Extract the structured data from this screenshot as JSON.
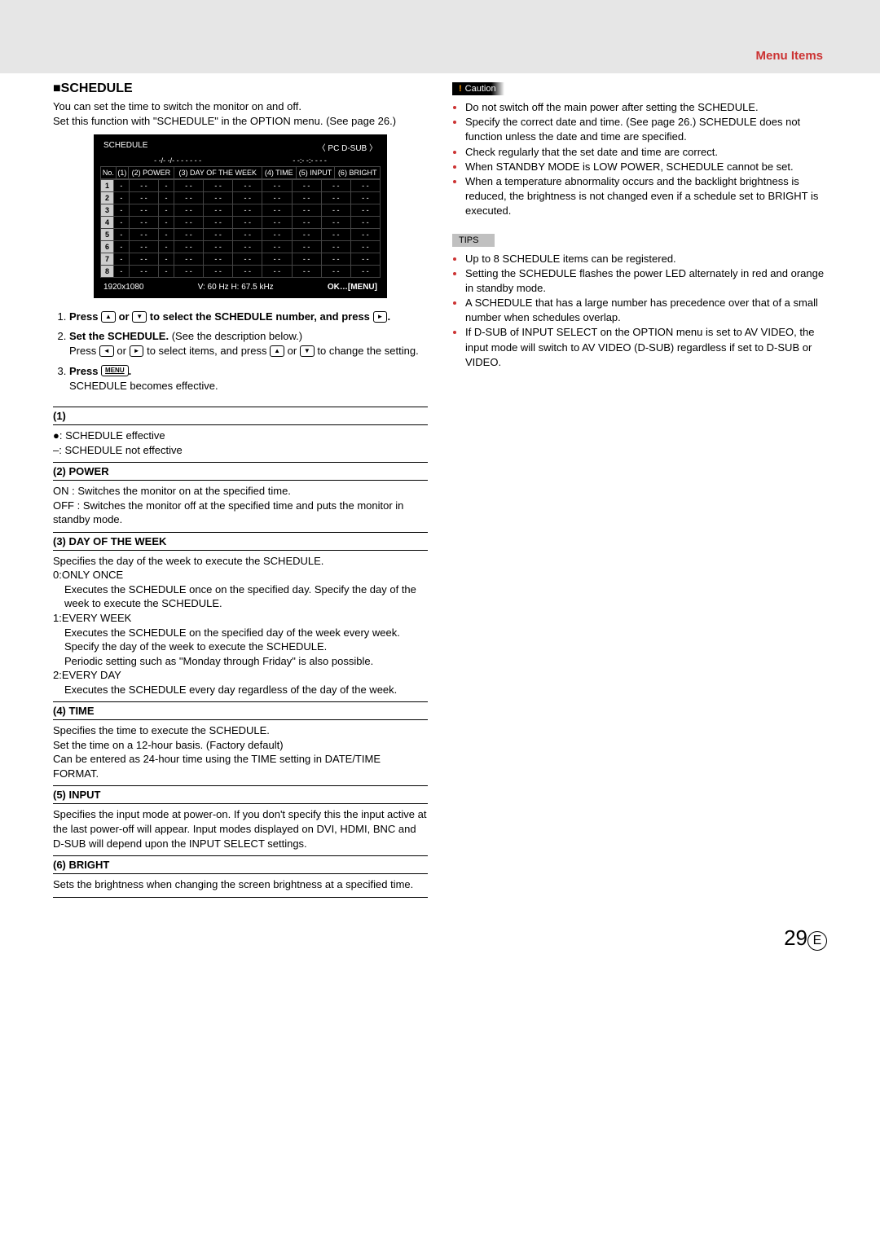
{
  "header": {
    "title": "Menu Items"
  },
  "section": {
    "title": "■SCHEDULE",
    "intro": "You can set the time to switch the monitor on and off.\nSet this function with \"SCHEDULE\" in the OPTION menu. (See page 26.)"
  },
  "osd": {
    "title": "SCHEDULE",
    "corner": "〈 PC D-SUB 〉",
    "date_line1": "- -/- -/- - - -   - - -",
    "date_line2": "- -:- -:- -  - -",
    "cols": [
      "No.",
      "(1)",
      "(2) POWER",
      "(3) DAY OF THE WEEK",
      "",
      "(4) TIME",
      "(5) INPUT",
      "(6) BRIGHT"
    ],
    "rows": [
      [
        "1",
        "-",
        "- -",
        "-",
        "- -",
        "- -",
        "- -",
        "- -",
        "- -",
        "- -",
        "- -"
      ],
      [
        "2",
        "-",
        "- -",
        "-",
        "- -",
        "- -",
        "- -",
        "- -",
        "- -",
        "- -",
        "- -"
      ],
      [
        "3",
        "-",
        "- -",
        "-",
        "- -",
        "- -",
        "- -",
        "- -",
        "- -",
        "- -",
        "- -"
      ],
      [
        "4",
        "-",
        "- -",
        "-",
        "- -",
        "- -",
        "- -",
        "- -",
        "- -",
        "- -",
        "- -"
      ],
      [
        "5",
        "-",
        "- -",
        "-",
        "- -",
        "- -",
        "- -",
        "- -",
        "- -",
        "- -",
        "- -"
      ],
      [
        "6",
        "-",
        "- -",
        "-",
        "- -",
        "- -",
        "- -",
        "- -",
        "- -",
        "- -",
        "- -"
      ],
      [
        "7",
        "-",
        "- -",
        "-",
        "- -",
        "- -",
        "- -",
        "- -",
        "- -",
        "- -",
        "- -"
      ],
      [
        "8",
        "-",
        "- -",
        "-",
        "- -",
        "- -",
        "- -",
        "- -",
        "- -",
        "- -",
        "- -"
      ]
    ],
    "footer_left": "1920x1080",
    "footer_mid": "V: 60 Hz   H: 67.5 kHz",
    "footer_right": "OK…[MENU]"
  },
  "steps": {
    "s1a": "Press ",
    "s1b": " or ",
    "s1c": " to select the SCHEDULE number, and press ",
    "s1d": ".",
    "btn_up": "▲",
    "btn_down": "▼",
    "btn_left": "◄",
    "btn_right": "►",
    "s2a": "Set the SCHEDULE.",
    "s2b": " (See the description below.)",
    "s2c": "Press ",
    "s2d": " or ",
    "s2e": " to select items, and press ",
    "s2f": " or ",
    "s2g": " to change the setting.",
    "s3a": "Press ",
    "btn_menu": "MENU",
    "s3b": ".",
    "s3c": "SCHEDULE becomes effective."
  },
  "fields": {
    "f1_head": "(1)",
    "f1_body": "●: SCHEDULE effective\n–: SCHEDULE not effective",
    "f2_head": "(2) POWER",
    "f2_body": "ON  :  Switches the monitor on at the specified time.\nOFF :  Switches the monitor off at the specified time and puts the monitor in standby mode.",
    "f3_head": "(3) DAY OF THE WEEK",
    "f3_body": "Specifies the day of the week to execute the SCHEDULE.",
    "f3_0": "0:ONLY ONCE",
    "f3_0b": "Executes the SCHEDULE once on the specified day. Specify the day of the week to execute the SCHEDULE.",
    "f3_1": "1:EVERY WEEK",
    "f3_1b": "Executes the SCHEDULE on the specified day of the week every week. Specify the day of the week to execute the SCHEDULE.\nPeriodic setting such as \"Monday through Friday\" is also possible.",
    "f3_2": "2:EVERY DAY",
    "f3_2b": "Executes the SCHEDULE every day regardless of the day of the week.",
    "f4_head": "(4) TIME",
    "f4_body": "Specifies the time to execute the SCHEDULE.\nSet the time on a 12-hour basis. (Factory default)\nCan be entered as 24-hour time using the TIME setting in DATE/TIME FORMAT.",
    "f5_head": "(5) INPUT",
    "f5_body": "Specifies the input mode at power-on. If you don't specify this the input active at the last power-off will appear. Input modes displayed on DVI, HDMI, BNC and D-SUB will depend upon the INPUT SELECT settings.",
    "f6_head": "(6) BRIGHT",
    "f6_body": "Sets the brightness when changing the screen brightness at a specified time."
  },
  "caution": {
    "label": "Caution",
    "items": [
      "Do not switch off the main power after setting the SCHEDULE.",
      "Specify the correct date and time. (See page 26.) SCHEDULE does not function unless the date and time are specified.",
      "Check regularly that the set date and time are correct.",
      "When STANDBY MODE is LOW POWER, SCHEDULE cannot be set.",
      "When a temperature abnormality occurs and the backlight brightness is reduced, the brightness is not changed even if a schedule set to BRIGHT is executed."
    ]
  },
  "tips": {
    "label": "TIPS",
    "items": [
      "Up to 8 SCHEDULE items can be registered.",
      "Setting the SCHEDULE flashes the power LED alternately in red and orange in standby mode.",
      "A SCHEDULE that has a large number has precedence over that of a small number when schedules overlap.",
      "If D-SUB of INPUT SELECT on the OPTION menu is set to AV VIDEO, the input mode will switch to AV VIDEO (D-SUB) regardless if set to D-SUB or VIDEO."
    ]
  },
  "page": {
    "num": "29",
    "lang": "E"
  }
}
